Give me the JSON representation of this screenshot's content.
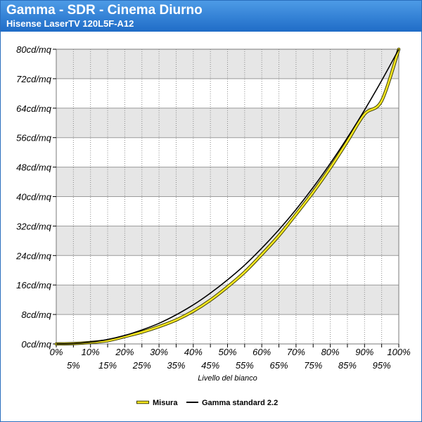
{
  "header": {
    "title": "Gamma - SDR - Cinema Diurno",
    "subtitle": "Hisense LaserTV 120L5F-A12"
  },
  "colors": {
    "header_top": "#4d9be6",
    "header_bottom": "#1f6cc7",
    "band_gray": "#e6e6e6",
    "measure_line": "#f5e61f",
    "reference_line": "#000000"
  },
  "chart_data": {
    "type": "line",
    "title": "Gamma - SDR - Cinema Diurno",
    "subtitle": "Hisense LaserTV 120L5F-A12",
    "xlabel": "Livello del bianco",
    "ylabel": "",
    "x": [
      0,
      5,
      10,
      15,
      20,
      25,
      30,
      35,
      40,
      45,
      50,
      55,
      60,
      65,
      70,
      75,
      80,
      85,
      90,
      95,
      100
    ],
    "x_tick_labels": [
      "0%",
      "5%",
      "10%",
      "15%",
      "20%",
      "25%",
      "30%",
      "35%",
      "40%",
      "45%",
      "50%",
      "55%",
      "60%",
      "65%",
      "70%",
      "75%",
      "80%",
      "85%",
      "90%",
      "95%",
      "100%"
    ],
    "xlim": [
      0,
      100
    ],
    "ylim": [
      0,
      80
    ],
    "y_ticks": [
      0,
      8,
      16,
      24,
      32,
      40,
      48,
      56,
      64,
      72,
      80
    ],
    "y_tick_labels": [
      "0cd/mq",
      "8cd/mq",
      "16cd/mq",
      "24cd/mq",
      "32cd/mq",
      "40cd/mq",
      "48cd/mq",
      "56cd/mq",
      "64cd/mq",
      "72cd/mq",
      "80cd/mq"
    ],
    "grid": true,
    "legend_position": "bottom",
    "series": [
      {
        "name": "Misura",
        "color": "#f5e61f",
        "values": [
          0,
          0.1,
          0.4,
          0.9,
          2.0,
          3.2,
          4.7,
          6.5,
          8.9,
          11.9,
          15.5,
          19.5,
          24.3,
          29.4,
          35.2,
          41.2,
          47.8,
          55.0,
          62.4,
          66.0,
          80.0
        ]
      },
      {
        "name": "Gamma standard 2.2",
        "color": "#000000",
        "values": [
          0,
          0.1,
          0.5,
          1.2,
          2.3,
          3.8,
          5.6,
          7.9,
          10.6,
          13.8,
          17.4,
          21.4,
          26.0,
          31.0,
          36.5,
          42.5,
          49.0,
          56.0,
          63.5,
          71.5,
          80.0
        ]
      }
    ]
  }
}
